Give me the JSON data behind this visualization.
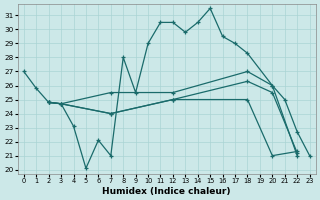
{
  "xlabel": "Humidex (Indice chaleur)",
  "bg_color": "#cce8e8",
  "line_color": "#1a6b6b",
  "grid_color": "#aad4d4",
  "xlim": [
    -0.5,
    23.5
  ],
  "ylim": [
    19.7,
    31.8
  ],
  "yticks": [
    20,
    21,
    22,
    23,
    24,
    25,
    26,
    27,
    28,
    29,
    30,
    31
  ],
  "xticks": [
    0,
    1,
    2,
    3,
    4,
    5,
    6,
    7,
    8,
    9,
    10,
    11,
    12,
    13,
    14,
    15,
    16,
    17,
    18,
    19,
    20,
    21,
    22,
    23
  ],
  "line1_x": [
    0,
    1,
    2,
    3,
    4,
    5,
    6,
    7,
    8,
    9,
    10,
    11,
    12,
    13,
    14,
    15,
    16,
    17,
    18,
    20,
    21,
    22,
    23
  ],
  "line1_y": [
    27.0,
    25.8,
    24.8,
    24.7,
    23.1,
    20.1,
    22.1,
    21.0,
    28.0,
    25.5,
    29.0,
    30.5,
    30.5,
    29.8,
    30.5,
    31.5,
    29.5,
    29.0,
    28.3,
    26.0,
    25.0,
    22.7,
    21.0
  ],
  "line2_x": [
    2,
    3,
    7,
    12,
    18,
    20,
    22
  ],
  "line2_y": [
    24.8,
    24.7,
    25.5,
    25.5,
    27.0,
    26.0,
    21.0
  ],
  "line3_x": [
    2,
    3,
    7,
    12,
    18,
    20,
    22
  ],
  "line3_y": [
    24.8,
    24.7,
    24.0,
    25.0,
    26.3,
    25.5,
    21.2
  ],
  "line4_x": [
    2,
    3,
    7,
    12,
    18,
    20,
    22
  ],
  "line4_y": [
    24.8,
    24.7,
    24.0,
    25.0,
    25.0,
    21.0,
    21.3
  ]
}
